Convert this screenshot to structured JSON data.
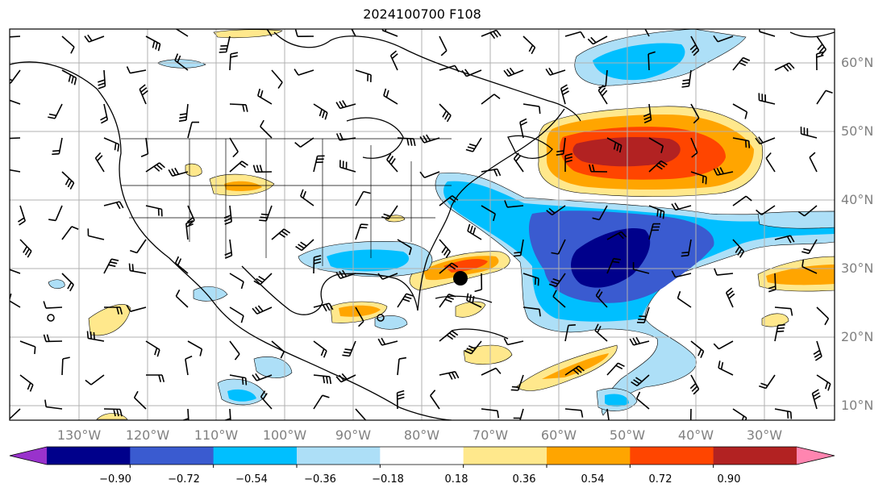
{
  "title": "2024100700 F108",
  "lat_labels": [
    "60°N",
    "50°N",
    "40°N",
    "30°N",
    "20°N",
    "10°N"
  ],
  "lon_labels": [
    "130°W",
    "120°W",
    "110°W",
    "100°W",
    "90°W",
    "80°W",
    "70°W",
    "60°W",
    "50°W",
    "40°W",
    "30°W"
  ],
  "colorbar": {
    "tick_labels": [
      "−0.90",
      "−0.72",
      "−0.54",
      "−0.36",
      "−0.18",
      "0.18",
      "0.36",
      "0.54",
      "0.72",
      "0.90"
    ],
    "colors": [
      "#9932CC",
      "#00008B",
      "#3A5BD0",
      "#00BFFF",
      "#ADDFF7",
      "#FFFFFF",
      "#FFE88C",
      "#FFA500",
      "#FF4500",
      "#B22222",
      "#FF85B0"
    ]
  },
  "anomaly_colors": {
    "neg1": "#ADDFF7",
    "neg2": "#00BFFF",
    "neg3": "#3A5BD0",
    "neg4": "#00008B",
    "pos1": "#FFE88C",
    "pos2": "#FFA500",
    "pos3": "#FF4500",
    "pos4": "#B22222"
  },
  "marker": {
    "label": "storm-center-marker"
  }
}
